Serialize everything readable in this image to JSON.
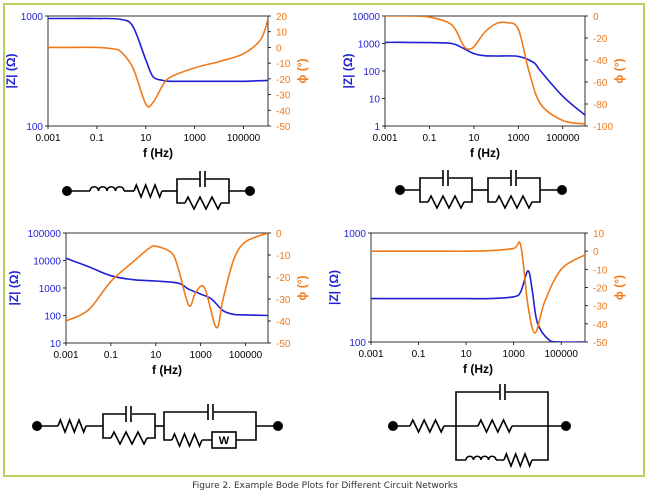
{
  "figure": {
    "caption": "Figure 2. Example Bode Plots for Different Circuit Networks",
    "frame_color": "#b7cf5f",
    "magnitude_color": "#1f1fd6",
    "phase_color": "#f07a1a"
  },
  "chart_data": [
    {
      "type": "line",
      "xlabel": "f (Hz)",
      "ylabel": "|Z| (Ω)",
      "y2label": "ϕ (°)",
      "x_scale": "log",
      "xlim": [
        0.001,
        1000000
      ],
      "xticks": [
        "0.001",
        "0.1",
        "10",
        "1000",
        "100000"
      ],
      "y_scale": "log",
      "ylim": [
        100,
        1000
      ],
      "yticks": [
        "1000",
        "100"
      ],
      "y2lim": [
        -50,
        20
      ],
      "y2ticks": [
        "20",
        "10",
        "0",
        "-10",
        "-20",
        "-30",
        "-40",
        "-50"
      ],
      "circuit": "inductor - resistor - (capacitor || resistor)",
      "series": [
        {
          "axis": "left",
          "x": [
            0.001,
            0.01,
            0.1,
            1,
            3,
            10,
            20,
            50,
            100,
            1000,
            10000,
            100000,
            1000000
          ],
          "y": [
            950,
            950,
            950,
            930,
            800,
            400,
            280,
            260,
            255,
            255,
            255,
            255,
            260
          ]
        },
        {
          "axis": "right",
          "x": [
            0.001,
            0.01,
            0.1,
            0.5,
            1,
            3,
            10,
            20,
            50,
            100,
            1000,
            10000,
            100000,
            500000,
            1000000
          ],
          "y": [
            0,
            0,
            0,
            -1,
            -3,
            -13,
            -36,
            -35,
            -24,
            -19,
            -13,
            -9,
            -4,
            5,
            18
          ]
        }
      ]
    },
    {
      "type": "line",
      "xlabel": "f (Hz)",
      "ylabel": "|Z| (Ω)",
      "y2label": "ϕ (°)",
      "x_scale": "log",
      "xlim": [
        0.001,
        1000000
      ],
      "xticks": [
        "0.001",
        "0.1",
        "10",
        "1000",
        "100000"
      ],
      "y_scale": "log",
      "ylim": [
        1,
        10000
      ],
      "yticks": [
        "10000",
        "1000",
        "100",
        "10",
        "1"
      ],
      "y2lim": [
        -100,
        0
      ],
      "y2ticks": [
        "0",
        "-20",
        "-40",
        "-60",
        "-80",
        "-100"
      ],
      "circuit": "(capacitor || resistor) - (capacitor || resistor)",
      "series": [
        {
          "axis": "left",
          "x": [
            0.001,
            0.01,
            0.1,
            1,
            3,
            10,
            30,
            100,
            1000,
            5000,
            10000,
            100000,
            1000000
          ],
          "y": [
            1100,
            1100,
            1080,
            1000,
            700,
            430,
            360,
            350,
            340,
            200,
            100,
            12,
            2.5
          ]
        },
        {
          "axis": "right",
          "x": [
            0.001,
            0.01,
            0.1,
            1,
            3,
            5,
            10,
            30,
            100,
            300,
            1000,
            3000,
            10000,
            100000,
            1000000
          ],
          "y": [
            0,
            0,
            -1,
            -8,
            -25,
            -30,
            -28,
            -15,
            -7,
            -6,
            -12,
            -50,
            -80,
            -95,
            -98
          ]
        }
      ]
    },
    {
      "type": "line",
      "xlabel": "f (Hz)",
      "ylabel": "|Z| (Ω)",
      "y2label": "ϕ (°)",
      "x_scale": "log",
      "xlim": [
        0.001,
        1000000
      ],
      "xticks": [
        "0.001",
        "0.1",
        "10",
        "1000",
        "100000"
      ],
      "y_scale": "log",
      "ylim": [
        10,
        100000
      ],
      "yticks": [
        "100000",
        "10000",
        "1000",
        "100",
        "10"
      ],
      "y2lim": [
        -50,
        0
      ],
      "y2ticks": [
        "0",
        "-10",
        "-20",
        "-30",
        "-40",
        "-50"
      ],
      "circuit": "resistor - (capacitor || resistor) - (capacitor || resistor - W)",
      "series": [
        {
          "axis": "left",
          "x": [
            0.001,
            0.01,
            0.1,
            1,
            10,
            100,
            300,
            1000,
            3000,
            10000,
            30000,
            100000,
            1000000
          ],
          "y": [
            12000,
            6000,
            2800,
            2000,
            1800,
            1500,
            900,
            600,
            400,
            150,
            110,
            105,
            100
          ]
        },
        {
          "axis": "right",
          "x": [
            0.001,
            0.01,
            0.1,
            1,
            5,
            10,
            50,
            100,
            300,
            600,
            1500,
            5000,
            10000,
            30000,
            100000,
            1000000
          ],
          "y": [
            -40,
            -35,
            -22,
            -13,
            -7,
            -6,
            -9,
            -16,
            -33,
            -27,
            -25,
            -43,
            -30,
            -12,
            -4,
            0
          ]
        }
      ]
    },
    {
      "type": "line",
      "xlabel": "f (Hz)",
      "ylabel": "|Z| (Ω)",
      "y2label": "ϕ (°)",
      "x_scale": "log",
      "xlim": [
        0.001,
        1000000
      ],
      "xticks": [
        "0.001",
        "0.1",
        "10",
        "1000",
        "100000"
      ],
      "y_scale": "log",
      "ylim": [
        100,
        1000
      ],
      "yticks": [
        "1000",
        "100"
      ],
      "y2lim": [
        -50,
        10
      ],
      "y2ticks": [
        "10",
        "0",
        "-10",
        "-20",
        "-30",
        "-40",
        "-50"
      ],
      "circuit": "resistor - (capacitor || resistor || (inductor - resistor))",
      "series": [
        {
          "axis": "left",
          "x": [
            0.001,
            0.01,
            0.1,
            1,
            10,
            100,
            1000,
            2000,
            4000,
            6000,
            10000,
            30000,
            100000,
            1000000
          ],
          "y": [
            250,
            250,
            250,
            250,
            250,
            250,
            260,
            290,
            450,
            300,
            150,
            105,
            100,
            100
          ]
        },
        {
          "axis": "right",
          "x": [
            0.001,
            0.01,
            0.1,
            1,
            10,
            100,
            1000,
            2000,
            4000,
            8000,
            20000,
            100000,
            1000000
          ],
          "y": [
            0,
            0,
            0,
            0,
            0,
            0.3,
            1.5,
            3,
            -30,
            -45,
            -28,
            -10,
            -2
          ]
        }
      ]
    }
  ]
}
